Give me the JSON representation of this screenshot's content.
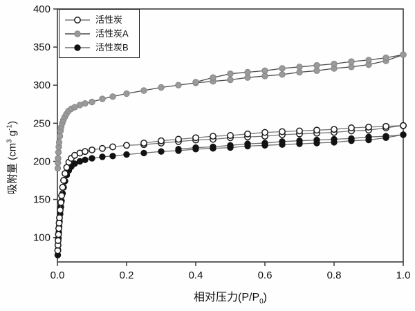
{
  "chart_data": {
    "type": "line",
    "title": "",
    "xlabel": {
      "prefix": "相对压力(P/P",
      "sub": "0",
      "suffix": ")"
    },
    "ylabel": {
      "prefix": "吸附量 (cm",
      "sup1": "3",
      "mid": " g",
      "sup2": "-1",
      "suffix": ")"
    },
    "xlim": [
      0,
      1.0
    ],
    "ylim": [
      68,
      400
    ],
    "x_ticks": [
      0.0,
      0.2,
      0.4,
      0.6,
      0.8,
      1.0
    ],
    "x_tick_labels": [
      "0.0",
      "0.2",
      "0.4",
      "0.6",
      "0.8",
      "1.0"
    ],
    "y_ticks": [
      100,
      150,
      200,
      250,
      300,
      350,
      400
    ],
    "y_tick_labels": [
      "100",
      "150",
      "200",
      "250",
      "300",
      "350",
      "400"
    ],
    "grid": false,
    "legend_position": "upper-left-inside",
    "frame_color": "#3a3a3a",
    "tick_label_color": "#111111",
    "background": "#fefefe",
    "series": [
      {
        "name": "活性炭",
        "marker": "open-circle",
        "marker_fill": "#ffffff",
        "marker_stroke": "#1a1a1a",
        "line_color": "#787878",
        "adsorption": [
          [
            0.001,
            83
          ],
          [
            0.0015,
            90
          ],
          [
            0.002,
            96
          ],
          [
            0.003,
            104
          ],
          [
            0.004,
            112
          ],
          [
            0.005,
            119
          ],
          [
            0.006,
            126
          ],
          [
            0.008,
            136
          ],
          [
            0.01,
            146
          ],
          [
            0.012,
            155
          ],
          [
            0.015,
            166
          ],
          [
            0.018,
            175
          ],
          [
            0.022,
            184
          ],
          [
            0.027,
            192
          ],
          [
            0.033,
            199
          ],
          [
            0.04,
            204
          ],
          [
            0.05,
            208
          ],
          [
            0.065,
            211
          ],
          [
            0.08,
            213
          ],
          [
            0.1,
            215
          ],
          [
            0.13,
            217
          ],
          [
            0.16,
            219
          ],
          [
            0.2,
            221
          ],
          [
            0.25,
            222
          ],
          [
            0.3,
            224
          ],
          [
            0.35,
            226
          ],
          [
            0.4,
            228
          ],
          [
            0.45,
            229
          ],
          [
            0.5,
            231
          ],
          [
            0.55,
            232
          ],
          [
            0.6,
            233
          ],
          [
            0.65,
            235
          ],
          [
            0.7,
            236
          ],
          [
            0.75,
            237
          ],
          [
            0.8,
            238
          ],
          [
            0.85,
            240
          ],
          [
            0.9,
            241
          ],
          [
            0.95,
            244
          ],
          [
            1.0,
            247
          ]
        ],
        "desorption": [
          [
            1.0,
            247
          ],
          [
            0.95,
            246
          ],
          [
            0.9,
            245
          ],
          [
            0.85,
            244
          ],
          [
            0.8,
            242
          ],
          [
            0.75,
            241
          ],
          [
            0.7,
            240
          ],
          [
            0.65,
            239
          ],
          [
            0.6,
            238
          ],
          [
            0.55,
            236
          ],
          [
            0.5,
            234
          ],
          [
            0.45,
            233
          ],
          [
            0.4,
            231
          ],
          [
            0.35,
            229
          ],
          [
            0.3,
            227
          ],
          [
            0.25,
            224
          ]
        ]
      },
      {
        "name": "活性炭A",
        "marker": "filled-circle",
        "marker_fill": "#9a9a9a",
        "marker_stroke": "#858585",
        "line_color": "#4a4a4a",
        "adsorption": [
          [
            0.001,
            191
          ],
          [
            0.0015,
            198
          ],
          [
            0.002,
            204
          ],
          [
            0.003,
            212
          ],
          [
            0.004,
            219
          ],
          [
            0.005,
            225
          ],
          [
            0.007,
            233
          ],
          [
            0.009,
            240
          ],
          [
            0.011,
            245
          ],
          [
            0.014,
            250
          ],
          [
            0.017,
            254
          ],
          [
            0.021,
            258
          ],
          [
            0.026,
            262
          ],
          [
            0.032,
            266
          ],
          [
            0.04,
            269
          ],
          [
            0.05,
            271
          ],
          [
            0.065,
            274
          ],
          [
            0.08,
            276
          ],
          [
            0.1,
            278
          ],
          [
            0.13,
            282
          ],
          [
            0.16,
            285
          ],
          [
            0.2,
            289
          ],
          [
            0.25,
            293
          ],
          [
            0.3,
            297
          ],
          [
            0.35,
            300
          ],
          [
            0.4,
            303
          ],
          [
            0.45,
            305
          ],
          [
            0.5,
            307
          ],
          [
            0.55,
            310
          ],
          [
            0.6,
            312
          ],
          [
            0.65,
            314
          ],
          [
            0.7,
            317
          ],
          [
            0.75,
            319
          ],
          [
            0.8,
            322
          ],
          [
            0.85,
            324
          ],
          [
            0.9,
            327
          ],
          [
            0.95,
            332
          ],
          [
            1.0,
            340
          ]
        ],
        "desorption": [
          [
            1.0,
            340
          ],
          [
            0.95,
            336
          ],
          [
            0.9,
            333
          ],
          [
            0.85,
            331
          ],
          [
            0.8,
            328
          ],
          [
            0.75,
            326
          ],
          [
            0.7,
            324
          ],
          [
            0.65,
            322
          ],
          [
            0.6,
            319
          ],
          [
            0.55,
            317
          ],
          [
            0.5,
            315
          ],
          [
            0.45,
            310
          ],
          [
            0.4,
            304
          ]
        ]
      },
      {
        "name": "活性炭B",
        "marker": "filled-circle",
        "marker_fill": "#121212",
        "marker_stroke": "#121212",
        "line_color": "#6e6e6e",
        "adsorption": [
          [
            0.001,
            77
          ],
          [
            0.0015,
            84
          ],
          [
            0.002,
            90
          ],
          [
            0.003,
            99
          ],
          [
            0.004,
            107
          ],
          [
            0.005,
            114
          ],
          [
            0.006,
            121
          ],
          [
            0.008,
            131
          ],
          [
            0.01,
            140
          ],
          [
            0.012,
            148
          ],
          [
            0.015,
            158
          ],
          [
            0.018,
            166
          ],
          [
            0.022,
            174
          ],
          [
            0.027,
            182
          ],
          [
            0.033,
            188
          ],
          [
            0.04,
            193
          ],
          [
            0.05,
            197
          ],
          [
            0.065,
            200
          ],
          [
            0.08,
            202
          ],
          [
            0.1,
            204
          ],
          [
            0.13,
            206
          ],
          [
            0.16,
            207
          ],
          [
            0.2,
            209
          ],
          [
            0.25,
            211
          ],
          [
            0.3,
            213
          ],
          [
            0.35,
            214
          ],
          [
            0.4,
            216
          ],
          [
            0.45,
            217
          ],
          [
            0.5,
            218
          ],
          [
            0.55,
            220
          ],
          [
            0.6,
            221
          ],
          [
            0.65,
            222
          ],
          [
            0.7,
            223
          ],
          [
            0.75,
            224
          ],
          [
            0.8,
            225
          ],
          [
            0.85,
            227
          ],
          [
            0.9,
            228
          ],
          [
            0.95,
            231
          ],
          [
            1.0,
            235
          ]
        ],
        "desorption": [
          [
            1.0,
            235
          ],
          [
            0.95,
            233
          ],
          [
            0.9,
            232
          ],
          [
            0.85,
            230
          ],
          [
            0.8,
            229
          ],
          [
            0.75,
            228
          ],
          [
            0.7,
            227
          ],
          [
            0.65,
            226
          ],
          [
            0.6,
            224
          ],
          [
            0.55,
            223
          ],
          [
            0.5,
            221
          ],
          [
            0.45,
            219
          ],
          [
            0.4,
            218
          ],
          [
            0.35,
            216
          ]
        ]
      }
    ]
  }
}
